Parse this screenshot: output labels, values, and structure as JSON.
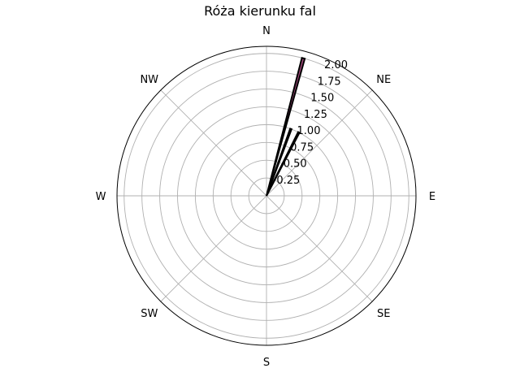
{
  "chart_data": {
    "type": "bar",
    "projection": "polar",
    "title": "Róża kierunku fal",
    "direction_labels": [
      "N",
      "NE",
      "E",
      "SE",
      "S",
      "SW",
      "W",
      "NW"
    ],
    "direction_angles_deg": [
      0,
      45,
      90,
      135,
      180,
      225,
      270,
      315
    ],
    "theta_zero": "N",
    "theta_direction": "clockwise",
    "r_ticks": [
      0.25,
      0.5,
      0.75,
      1.0,
      1.25,
      1.5,
      1.75,
      2.0
    ],
    "r_tick_labels": [
      "0.25",
      "0.50",
      "0.75",
      "1.00",
      "1.25",
      "1.50",
      "1.75",
      "2.00"
    ],
    "rlim": [
      0,
      2.1
    ],
    "grid": true,
    "bars": [
      {
        "direction_deg": 15,
        "value": 2.0,
        "edge_color": "#000000",
        "face_color": "#a0487a"
      },
      {
        "direction_deg": 20,
        "value": 1.0,
        "edge_color": "#000000",
        "face_color": "#000000"
      },
      {
        "direction_deg": 27,
        "value": 1.0,
        "edge_color": "#000000",
        "face_color": "#000000"
      }
    ],
    "bar_width_deg": 1.2
  }
}
